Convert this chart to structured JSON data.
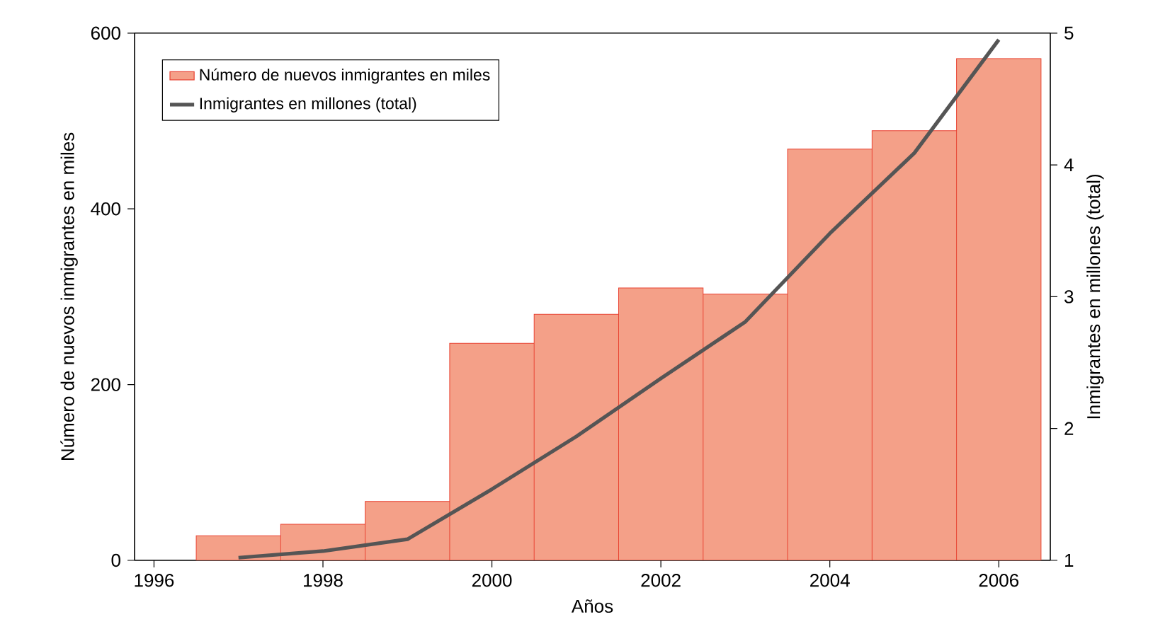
{
  "chart_data": {
    "type": "bar",
    "xlabel": "Años",
    "ylabel": "Número de nuevos inmigrantes en miles",
    "y2label": "Inmigrantes en millones (total)",
    "x": [
      1997,
      1998,
      1999,
      2000,
      2001,
      2002,
      2003,
      2004,
      2005,
      2006
    ],
    "series": [
      {
        "name": "Número de nuevos inmigrantes en miles",
        "color": "#f4a088",
        "values": [
          28,
          41,
          67,
          247,
          280,
          310,
          303,
          468,
          489,
          571
        ]
      },
      {
        "name": "Inmigrantes en millones (total)",
        "type": "line",
        "axis": "y2",
        "color": "#555555",
        "values": [
          1.02,
          1.07,
          1.16,
          1.54,
          1.94,
          2.38,
          2.81,
          3.48,
          4.09,
          4.95
        ]
      }
    ],
    "xlim": [
      1995.77,
      2006.61
    ],
    "xticks": [
      1996,
      1998,
      2000,
      2002,
      2004,
      2006
    ],
    "ylim": [
      0,
      600
    ],
    "yticks": [
      0,
      200,
      400,
      600
    ],
    "y2lim": [
      1,
      5
    ],
    "y2ticks": [
      1,
      2,
      3,
      4,
      5
    ],
    "legend": "top left"
  }
}
